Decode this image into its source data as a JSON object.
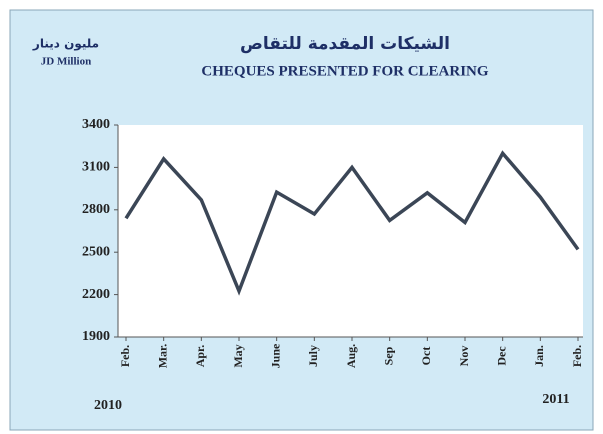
{
  "chart_data": {
    "type": "line",
    "title": "CHEQUES PRESENTED FOR CLEARING",
    "title_ar": "الشيكات المقدمة للتقاص",
    "unit": "JD Million",
    "unit_ar": "مليون دينار",
    "year_labels": [
      "2010",
      "2011"
    ],
    "categories": [
      "Feb.",
      "Mar.",
      "Apr.",
      "May",
      "June",
      "July",
      "Aug.",
      "Sep",
      "Oct",
      "Nov",
      "Dec",
      "Jan.",
      "Feb."
    ],
    "series": [
      {
        "name": "Cheques",
        "color": "#3b4656",
        "values": [
          2740,
          3160,
          2870,
          2225,
          2925,
          2770,
          3100,
          2725,
          2920,
          2710,
          3200,
          2890,
          2520
        ]
      }
    ],
    "ylim": [
      1900,
      3400
    ],
    "yticks": [
      1900,
      2200,
      2500,
      2800,
      3100,
      3400
    ],
    "grid": false
  }
}
